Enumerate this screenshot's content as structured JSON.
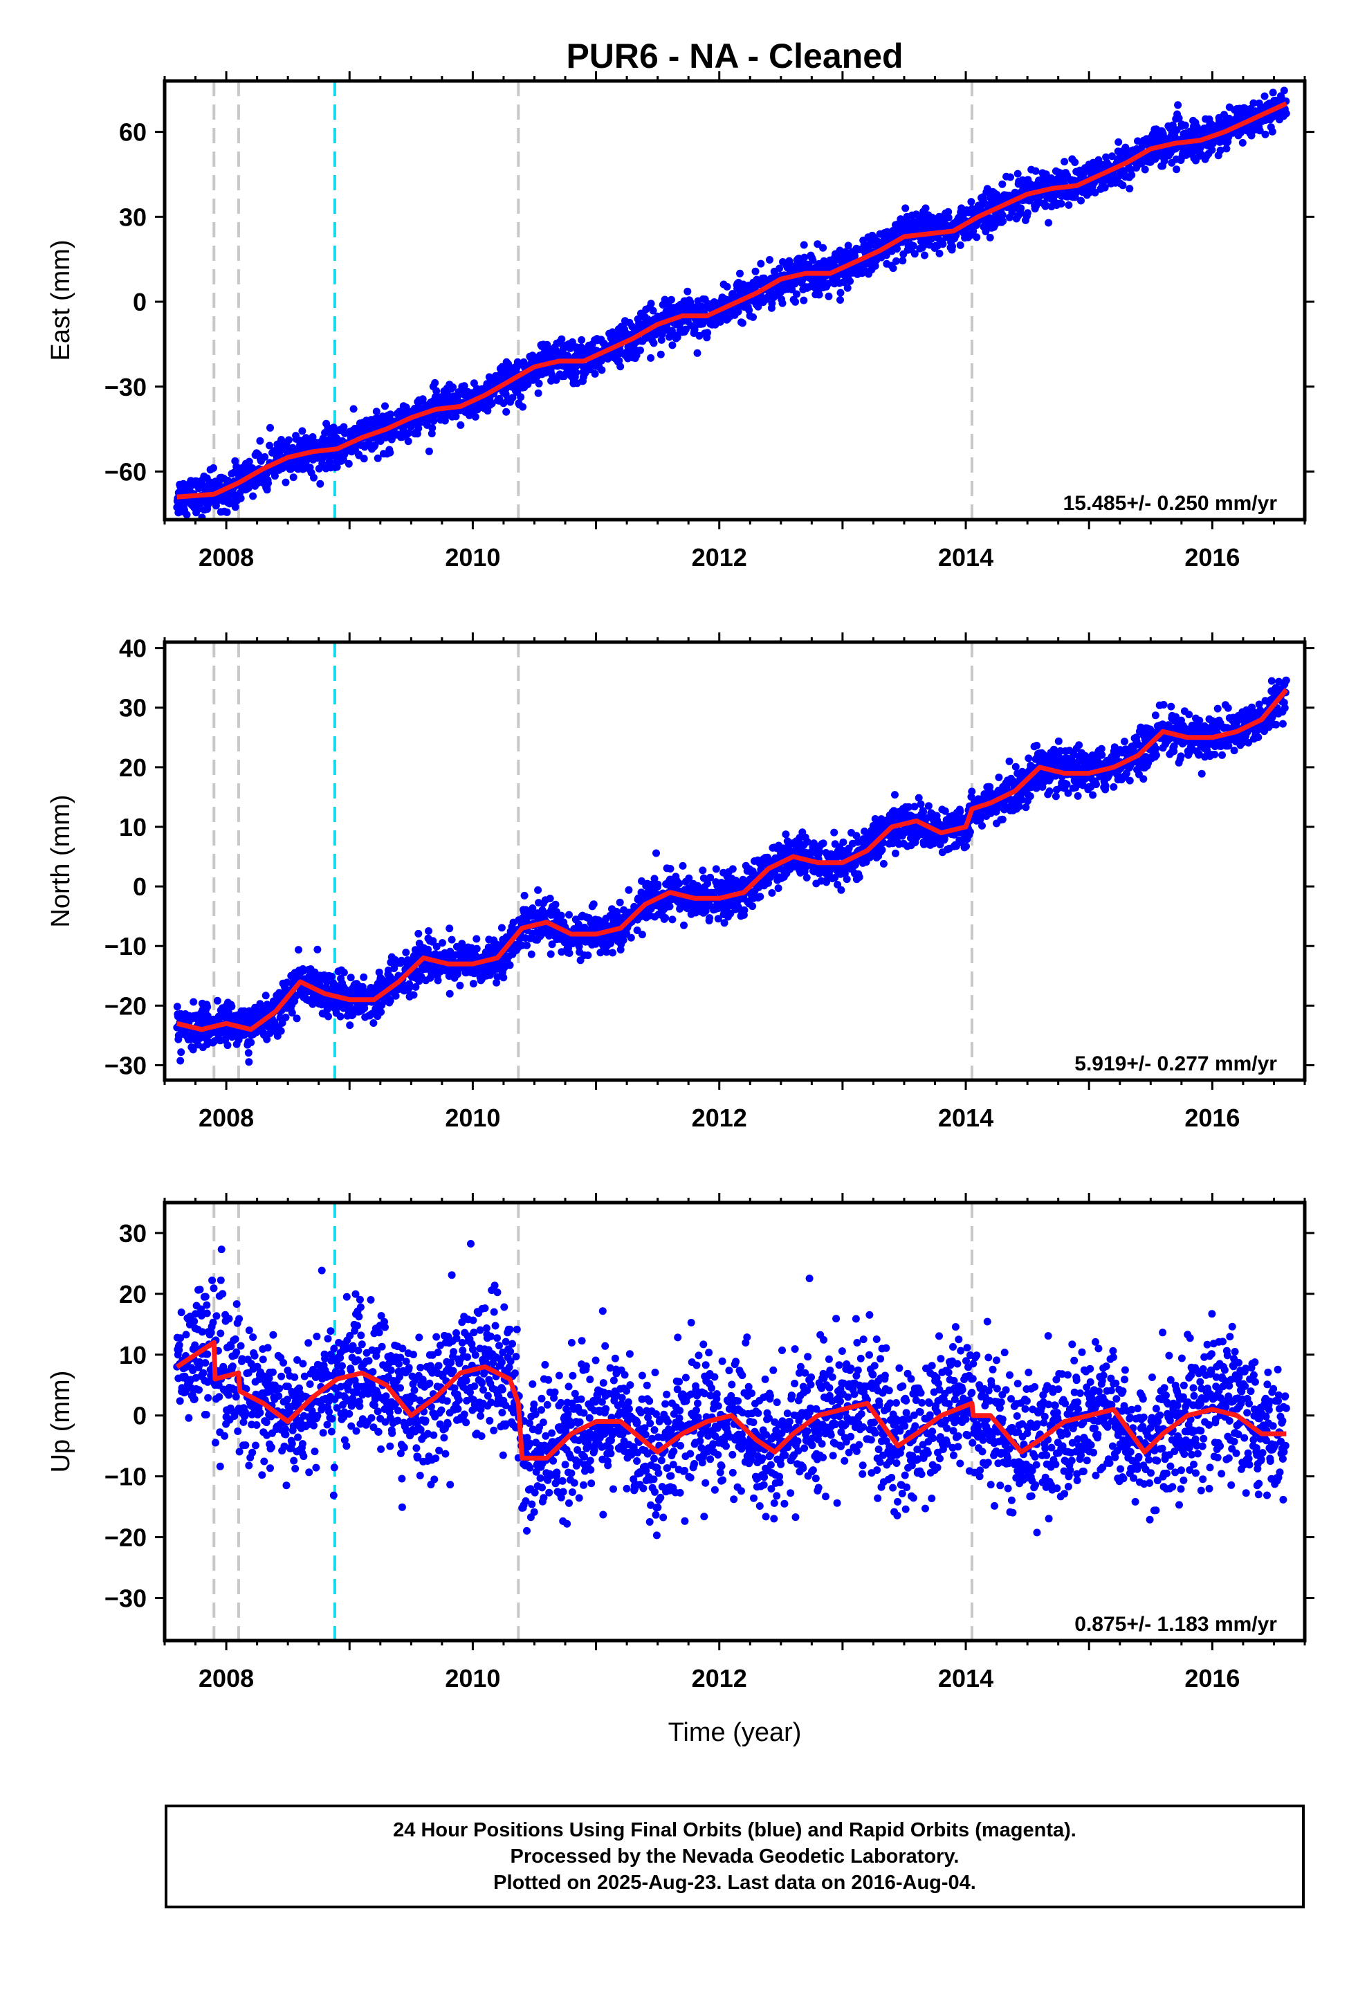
{
  "chart_data": [
    {
      "type": "scatter",
      "title": "PUR6  - NA - Cleaned",
      "ylabel": "East (mm)",
      "xlabel": "",
      "xlim": [
        2007.5,
        2016.75
      ],
      "ylim": [
        -77,
        78
      ],
      "xticks": [
        2008,
        2010,
        2012,
        2014,
        2016
      ],
      "yticks": [
        60,
        30,
        0,
        -30,
        -60
      ],
      "rate_label": "15.485+/- 0.250 mm/yr",
      "gray_breaks": [
        2007.9,
        2008.1,
        2010.37,
        2014.05
      ],
      "cyan_breaks": [
        2008.88
      ],
      "trend": {
        "x": [
          2007.6,
          2007.9,
          2008.1,
          2008.3,
          2008.5,
          2008.7,
          2008.9,
          2009.1,
          2009.3,
          2009.5,
          2009.7,
          2009.9,
          2010.1,
          2010.3,
          2010.5,
          2010.7,
          2010.9,
          2011.1,
          2011.3,
          2011.5,
          2011.7,
          2011.9,
          2012.1,
          2012.3,
          2012.5,
          2012.7,
          2012.9,
          2013.1,
          2013.3,
          2013.5,
          2013.7,
          2013.9,
          2014.1,
          2014.3,
          2014.5,
          2014.7,
          2014.9,
          2015.1,
          2015.3,
          2015.5,
          2015.7,
          2015.9,
          2016.1,
          2016.3,
          2016.6
        ],
        "y": [
          -69,
          -68,
          -64,
          -59,
          -55,
          -53,
          -52,
          -48,
          -45,
          -41,
          -38,
          -37,
          -33,
          -28,
          -23,
          -21,
          -21,
          -17,
          -13,
          -8,
          -5,
          -5,
          -1,
          3,
          8,
          10,
          10,
          14,
          18,
          23,
          24,
          25,
          30,
          34,
          38,
          40,
          41,
          45,
          49,
          54,
          56,
          57,
          60,
          64,
          70
        ]
      },
      "points": {
        "color": "#0000ff",
        "noise": 3.5,
        "description": "daily 24h positions"
      }
    },
    {
      "type": "scatter",
      "title": "",
      "ylabel": "North (mm)",
      "xlabel": "",
      "xlim": [
        2007.5,
        2016.75
      ],
      "ylim": [
        -32.5,
        41
      ],
      "xticks": [
        2008,
        2010,
        2012,
        2014,
        2016
      ],
      "yticks": [
        40,
        30,
        20,
        10,
        0,
        -10,
        -20,
        -30
      ],
      "rate_label": "5.919+/- 0.277 mm/yr",
      "gray_breaks": [
        2007.9,
        2008.1,
        2010.37,
        2014.05
      ],
      "cyan_breaks": [
        2008.88
      ],
      "trend": {
        "x": [
          2007.6,
          2007.8,
          2008.0,
          2008.2,
          2008.4,
          2008.6,
          2008.8,
          2009.0,
          2009.2,
          2009.4,
          2009.6,
          2009.8,
          2010.0,
          2010.2,
          2010.4,
          2010.6,
          2010.8,
          2011.0,
          2011.2,
          2011.4,
          2011.6,
          2011.8,
          2012.0,
          2012.2,
          2012.4,
          2012.6,
          2012.8,
          2013.0,
          2013.2,
          2013.4,
          2013.6,
          2013.8,
          2014.0,
          2014.05,
          2014.2,
          2014.4,
          2014.6,
          2014.8,
          2015.0,
          2015.2,
          2015.4,
          2015.6,
          2015.8,
          2016.0,
          2016.2,
          2016.4,
          2016.6
        ],
        "y": [
          -23,
          -24,
          -23,
          -24,
          -21,
          -16,
          -18,
          -19,
          -19,
          -16,
          -12,
          -13,
          -13,
          -12,
          -7,
          -6,
          -8,
          -8,
          -7,
          -3,
          -1,
          -2,
          -2,
          -1,
          3,
          5,
          4,
          4,
          6,
          10,
          11,
          9,
          10,
          13,
          14,
          16,
          20,
          19,
          19,
          20,
          22,
          26,
          25,
          25,
          26,
          28,
          33
        ]
      },
      "points": {
        "color": "#0000ff",
        "noise": 1.8,
        "description": "daily 24h positions"
      }
    },
    {
      "type": "scatter",
      "title": "",
      "ylabel": "Up (mm)",
      "xlabel": "Time (year)",
      "xlim": [
        2007.5,
        2016.75
      ],
      "ylim": [
        -37,
        35
      ],
      "xticks": [
        2008,
        2010,
        2012,
        2014,
        2016
      ],
      "yticks": [
        30,
        20,
        10,
        0,
        -10,
        -20,
        -30
      ],
      "rate_label": "0.875+/- 1.183 mm/yr",
      "gray_breaks": [
        2007.9,
        2008.1,
        2010.37,
        2014.05
      ],
      "cyan_breaks": [
        2008.88
      ],
      "trend": {
        "x": [
          2007.6,
          2007.75,
          2007.9,
          2007.91,
          2008.1,
          2008.11,
          2008.3,
          2008.5,
          2008.7,
          2008.9,
          2009.1,
          2009.3,
          2009.5,
          2009.7,
          2009.9,
          2010.1,
          2010.3,
          2010.37,
          2010.4,
          2010.6,
          2010.8,
          2011.0,
          2011.2,
          2011.5,
          2011.7,
          2011.9,
          2012.1,
          2012.3,
          2012.45,
          2012.6,
          2012.8,
          2013.0,
          2013.2,
          2013.45,
          2013.6,
          2013.8,
          2014.05,
          2014.06,
          2014.2,
          2014.45,
          2014.6,
          2014.8,
          2015.0,
          2015.2,
          2015.45,
          2015.6,
          2015.8,
          2016.0,
          2016.2,
          2016.4,
          2016.6
        ],
        "y": [
          8,
          10,
          12,
          6,
          7,
          4,
          2,
          -1,
          3,
          6,
          7,
          5,
          0,
          3,
          7,
          8,
          6,
          2,
          -7,
          -7,
          -3,
          -1,
          -1,
          -6,
          -3,
          -1,
          0,
          -4,
          -6,
          -3,
          0,
          1,
          2,
          -5,
          -3,
          0,
          2,
          0,
          0,
          -6,
          -4,
          -1,
          0,
          1,
          -6,
          -3,
          0,
          1,
          0,
          -3,
          -3
        ]
      },
      "points": {
        "color": "#0000ff",
        "noise": 5.5,
        "description": "daily 24h positions"
      }
    }
  ],
  "caption": {
    "line1": "24 Hour Positions Using Final Orbits (blue) and Rapid Orbits (magenta).",
    "line2": "Processed by the Nevada Geodetic Laboratory.",
    "line3": "Plotted on 2025-Aug-23. Last data on 2016-Aug-04."
  },
  "colors": {
    "points": "#0000ff",
    "trend": "#ff1a1a",
    "gray_break": "#c8c8c8",
    "cyan_break": "#17d8e6",
    "frame": "#000000"
  }
}
